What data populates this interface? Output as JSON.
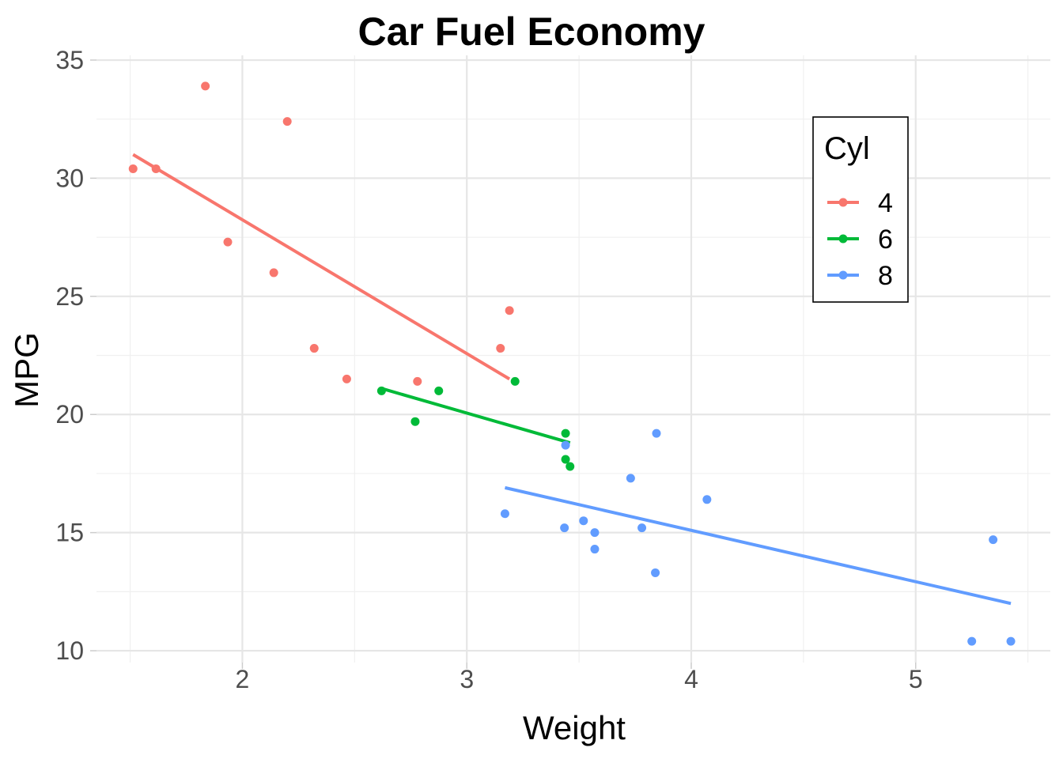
{
  "chart_data": {
    "type": "scatter",
    "title": "Car Fuel Economy",
    "xlabel": "Weight",
    "ylabel": "MPG",
    "xlim": [
      1.35,
      5.6
    ],
    "ylim": [
      9.5,
      35.2
    ],
    "x_ticks": [
      2,
      3,
      4,
      5
    ],
    "x_tick_labels": [
      "2",
      "3",
      "4",
      "5"
    ],
    "y_ticks": [
      10,
      15,
      20,
      25,
      30,
      35
    ],
    "y_tick_labels": [
      "10",
      "15",
      "20",
      "25",
      "30",
      "35"
    ],
    "grid": true,
    "legend": {
      "title": "Cyl",
      "placement": "top-right",
      "entries": [
        "4",
        "6",
        "8"
      ]
    },
    "series": [
      {
        "name": "4",
        "color": "#f8766d",
        "points": [
          [
            1.513,
            30.4
          ],
          [
            1.615,
            30.4
          ],
          [
            1.835,
            33.9
          ],
          [
            1.935,
            27.3
          ],
          [
            2.14,
            26.0
          ],
          [
            2.2,
            32.4
          ],
          [
            2.32,
            22.8
          ],
          [
            2.465,
            21.5
          ],
          [
            2.78,
            21.4
          ],
          [
            3.15,
            22.8
          ],
          [
            3.19,
            24.4
          ]
        ],
        "fit": [
          [
            1.513,
            31.0
          ],
          [
            3.19,
            21.5
          ]
        ]
      },
      {
        "name": "6",
        "color": "#00ba38",
        "points": [
          [
            2.62,
            21.0
          ],
          [
            2.77,
            19.7
          ],
          [
            2.875,
            21.0
          ],
          [
            3.215,
            21.4
          ],
          [
            3.44,
            18.1
          ],
          [
            3.44,
            19.2
          ],
          [
            3.46,
            17.8
          ]
        ],
        "fit": [
          [
            2.62,
            21.1
          ],
          [
            3.46,
            18.8
          ]
        ]
      },
      {
        "name": "8",
        "color": "#619cff",
        "points": [
          [
            3.17,
            15.8
          ],
          [
            3.435,
            15.2
          ],
          [
            3.44,
            18.7
          ],
          [
            3.52,
            15.5
          ],
          [
            3.57,
            14.3
          ],
          [
            3.57,
            15.0
          ],
          [
            3.73,
            17.3
          ],
          [
            3.78,
            15.2
          ],
          [
            3.84,
            13.3
          ],
          [
            3.845,
            19.2
          ],
          [
            4.07,
            16.4
          ],
          [
            5.25,
            10.4
          ],
          [
            5.345,
            14.7
          ],
          [
            5.424,
            10.4
          ]
        ],
        "fit": [
          [
            3.17,
            16.9
          ],
          [
            5.424,
            12.0
          ]
        ]
      }
    ]
  }
}
